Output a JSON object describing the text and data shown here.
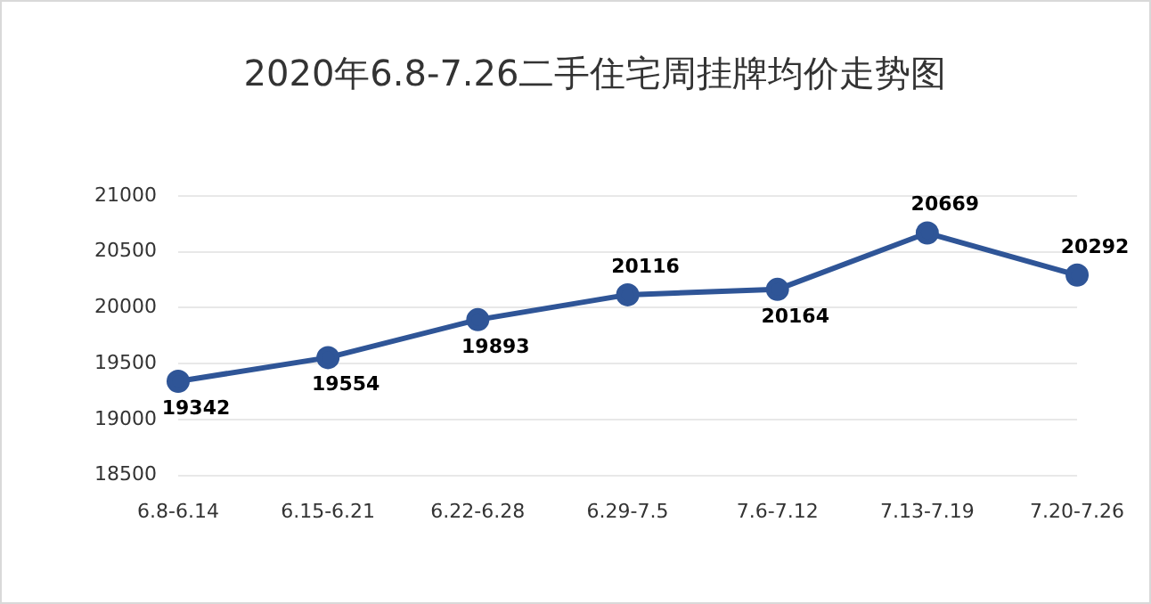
{
  "chart_data": {
    "type": "line",
    "title": "2020年6.8-7.26二手住宅周挂牌均价走势图",
    "categories": [
      "6.8-6.14",
      "6.15-6.21",
      "6.22-6.28",
      "6.29-7.5",
      "7.6-7.12",
      "7.13-7.19",
      "7.20-7.26"
    ],
    "series": [
      {
        "color": "#2f5597",
        "values": [
          19342,
          19554,
          19893,
          20116,
          20164,
          20669,
          20292
        ]
      }
    ],
    "ylim": [
      18500,
      21000
    ],
    "yticks": [
      18500,
      19000,
      19500,
      20000,
      20500,
      21000
    ],
    "grid": "y",
    "legend": false,
    "marker": "circle",
    "line_style": "solid",
    "data_labels": true
  }
}
